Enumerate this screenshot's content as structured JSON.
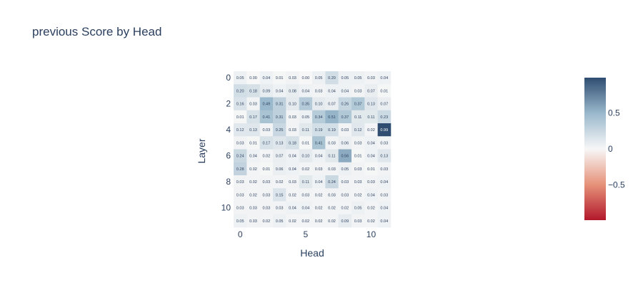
{
  "chart_data": {
    "type": "heatmap",
    "title": "previous Score by Head",
    "xlabel": "Head",
    "ylabel": "Layer",
    "x_categories": [
      0,
      1,
      2,
      3,
      4,
      5,
      6,
      7,
      8,
      9,
      10,
      11
    ],
    "y_categories": [
      0,
      1,
      2,
      3,
      4,
      5,
      6,
      7,
      8,
      9,
      10,
      11
    ],
    "x_tick_labels": [
      "0",
      "5",
      "10"
    ],
    "x_tick_values": [
      0,
      5,
      10
    ],
    "y_tick_labels": [
      "0",
      "2",
      "4",
      "6",
      "8",
      "10"
    ],
    "y_tick_values": [
      0,
      2,
      4,
      6,
      8,
      10
    ],
    "y_reversed": true,
    "colorscale": "RdBu",
    "zmid": 0,
    "zrange": [
      -0.99,
      0.99
    ],
    "colorbar_ticks": [
      "0.5",
      "0",
      "−0.5"
    ],
    "colorbar_tick_values": [
      0.5,
      0,
      -0.5
    ],
    "values": [
      [
        0.05,
        0.0,
        0.04,
        0.01,
        0.03,
        0.0,
        0.05,
        0.2,
        0.05,
        0.05,
        0.03,
        0.04
      ],
      [
        0.2,
        0.18,
        0.09,
        0.04,
        0.08,
        0.04,
        0.03,
        0.04,
        0.04,
        0.03,
        0.07,
        0.01
      ],
      [
        0.16,
        0.03,
        0.49,
        0.31,
        0.1,
        0.35,
        0.1,
        0.07,
        0.26,
        0.37,
        0.13,
        0.07
      ],
      [
        0.01,
        0.17,
        0.41,
        0.31,
        0.03,
        0.05,
        0.34,
        0.51,
        0.37,
        0.11,
        0.11,
        0.23
      ],
      [
        0.12,
        0.13,
        0.03,
        0.25,
        0.03,
        0.11,
        0.19,
        0.19,
        0.03,
        0.12,
        0.02,
        0.99
      ],
      [
        0.03,
        0.01,
        0.17,
        0.13,
        0.18,
        0.01,
        0.41,
        0.03,
        0.06,
        0.03,
        0.04,
        0.03
      ],
      [
        0.24,
        0.04,
        0.02,
        0.07,
        0.04,
        0.1,
        0.04,
        0.11,
        0.56,
        0.01,
        0.04,
        0.13
      ],
      [
        0.28,
        0.02,
        0.01,
        0.06,
        0.04,
        0.02,
        0.03,
        0.03,
        0.05,
        0.03,
        0.01,
        0.03
      ],
      [
        0.03,
        0.02,
        0.03,
        0.02,
        0.03,
        0.11,
        0.04,
        0.24,
        0.03,
        0.03,
        0.03,
        0.04
      ],
      [
        0.03,
        0.02,
        0.03,
        0.15,
        0.02,
        0.03,
        0.02,
        0.03,
        0.03,
        0.02,
        0.04,
        0.03
      ],
      [
        0.03,
        0.03,
        0.03,
        0.03,
        0.04,
        0.04,
        0.02,
        0.02,
        0.02,
        0.05,
        0.02,
        0.04
      ],
      [
        0.05,
        0.03,
        0.02,
        0.05,
        0.02,
        0.02,
        0.02,
        0.02,
        0.09,
        0.03,
        0.02,
        0.04
      ]
    ]
  }
}
